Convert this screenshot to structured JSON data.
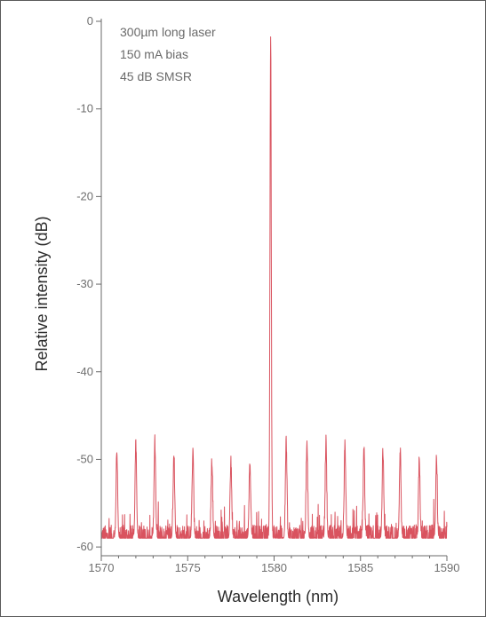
{
  "chart_data": {
    "type": "line",
    "title": "",
    "xlabel": "Wavelength (nm)",
    "ylabel": "Relative intensity (dB)",
    "xlim": [
      1570,
      1590
    ],
    "ylim": [
      -61,
      0
    ],
    "x_ticks": [
      1570,
      1575,
      1580,
      1585,
      1590
    ],
    "x_tick_labels": [
      "1570",
      "1575",
      "1580",
      "1585",
      "1590"
    ],
    "y_ticks": [
      0,
      -10,
      -20,
      -30,
      -40,
      -50,
      -60
    ],
    "y_tick_labels": [
      "0",
      "-10",
      "-20",
      "-30",
      "-40",
      "-50",
      "-60"
    ],
    "grid": false,
    "annotations": [
      "300µm long laser",
      "150 mA bias",
      "45 dB SMSR"
    ],
    "line_color": "#d9535f",
    "noise_floor_db": -59,
    "series": [
      {
        "peaks": [
          {
            "x": 1570.9,
            "y": -49
          },
          {
            "x": 1572.0,
            "y": -48
          },
          {
            "x": 1573.1,
            "y": -48
          },
          {
            "x": 1574.2,
            "y": -49
          },
          {
            "x": 1575.3,
            "y": -49
          },
          {
            "x": 1576.4,
            "y": -50
          },
          {
            "x": 1577.5,
            "y": -50
          },
          {
            "x": 1578.6,
            "y": -50
          },
          {
            "x": 1579.8,
            "y": -2
          },
          {
            "x": 1580.7,
            "y": -48
          },
          {
            "x": 1581.9,
            "y": -48
          },
          {
            "x": 1583.0,
            "y": -48
          },
          {
            "x": 1584.1,
            "y": -48
          },
          {
            "x": 1585.2,
            "y": -49
          },
          {
            "x": 1586.3,
            "y": -49
          },
          {
            "x": 1587.3,
            "y": -49
          },
          {
            "x": 1588.4,
            "y": -50
          },
          {
            "x": 1589.4,
            "y": -50
          }
        ]
      }
    ]
  }
}
